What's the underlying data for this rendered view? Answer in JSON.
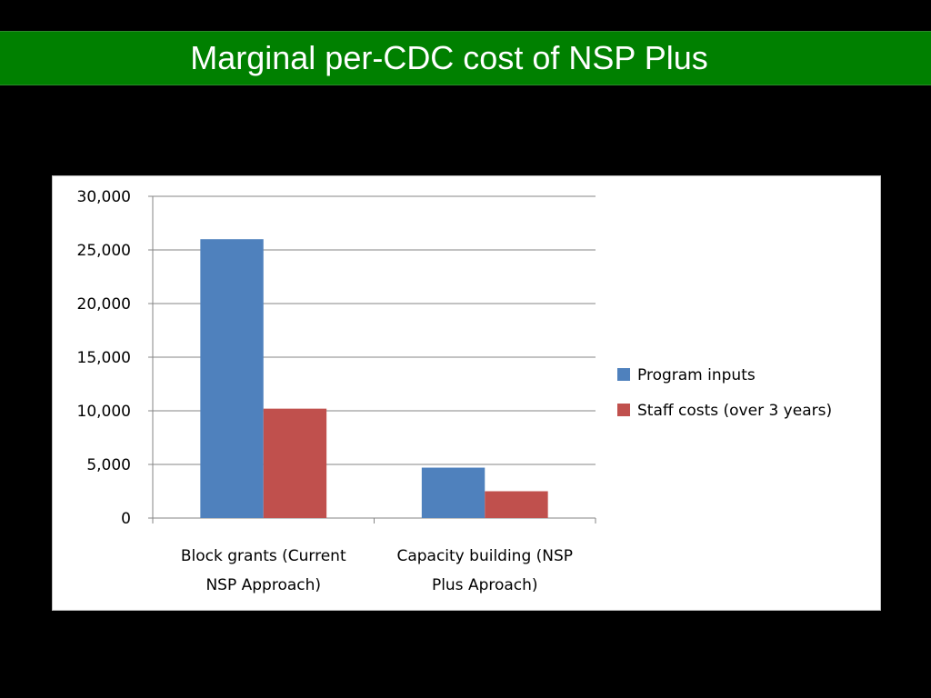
{
  "slide": {
    "title": "Marginal per-CDC cost of NSP Plus"
  },
  "colors": {
    "title_bar": "#008000",
    "background": "#000000",
    "series_program_inputs": "#4F81BD",
    "series_staff_costs": "#C0504D"
  },
  "chart_data": {
    "type": "bar",
    "title": "",
    "xlabel": "",
    "ylabel": "",
    "ylim": [
      0,
      30000
    ],
    "yticks": [
      0,
      5000,
      10000,
      15000,
      20000,
      25000,
      30000
    ],
    "ytick_labels": [
      "0",
      "5,000",
      "10,000",
      "15,000",
      "20,000",
      "25,000",
      "30,000"
    ],
    "categories": [
      [
        "Block grants (Current",
        "NSP Approach)"
      ],
      [
        "Capacity building (NSP",
        "Plus Aproach)"
      ]
    ],
    "series": [
      {
        "name": "Program inputs",
        "color": "#4F81BD",
        "values": [
          26000,
          4700
        ]
      },
      {
        "name": "Staff costs (over 3 years)",
        "color": "#C0504D",
        "values": [
          10200,
          2500
        ]
      }
    ],
    "grid": true,
    "legend": "right"
  }
}
